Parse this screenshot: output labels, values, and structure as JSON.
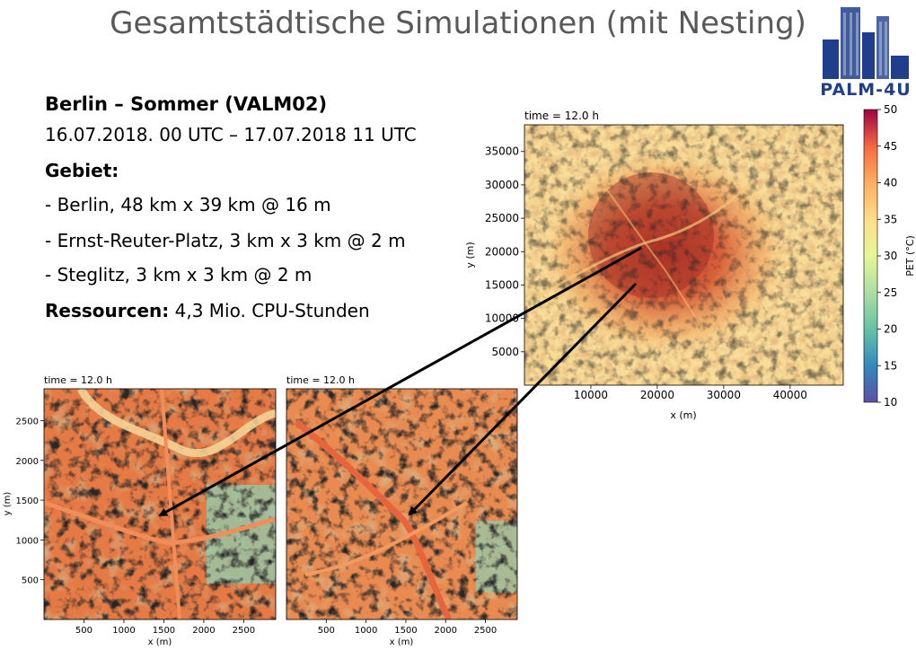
{
  "slide": {
    "title": "Gesamtstädtische Simulationen (mit Nesting)",
    "logo_text": "PALM-4U",
    "heading": "Berlin – Sommer (VALM02)",
    "period": "16.07.2018. 00 UTC – 17.07.2018 11 UTC",
    "gebiet_label": "Gebiet:",
    "domains": [
      "- Berlin, 48 km x 39 km @ 16 m",
      "- Ernst-Reuter-Platz, 3 km x 3 km @ 2 m",
      "- Steglitz, 3 km x 3 km @ 2 m"
    ],
    "ressourcen_label": "Ressourcen:",
    "ressourcen_value": " 4,3 Mio. CPU-Stunden"
  },
  "colors": {
    "title": "#595959",
    "logo_blue": "#1f3f8c",
    "arrow": "#000000"
  },
  "chart_data": [
    {
      "type": "heatmap",
      "name": "berlin",
      "title": "time =  12.0 h",
      "xlabel": "x (m)",
      "ylabel": "y (m)",
      "xticks": [
        "10000",
        "20000",
        "30000",
        "40000"
      ],
      "yticks": [
        "5000",
        "10000",
        "15000",
        "20000",
        "25000",
        "30000",
        "35000"
      ],
      "xlim": [
        0,
        48000
      ],
      "ylim": [
        0,
        39000
      ],
      "colorbar": {
        "label": "PET (°C)",
        "min": 10,
        "max": 50,
        "ticks": [
          "10",
          "15",
          "20",
          "25",
          "30",
          "35",
          "40",
          "45",
          "50"
        ],
        "colormap": "Spectral_r"
      }
    },
    {
      "type": "heatmap",
      "name": "ernst-reuter-platz",
      "title": "time =  12.0 h",
      "xlabel": "x (m)",
      "ylabel": "y (m)",
      "xticks": [
        "500",
        "1000",
        "1500",
        "2000",
        "2500"
      ],
      "yticks": [
        "500",
        "1000",
        "1500",
        "2000",
        "2500"
      ],
      "xlim": [
        0,
        2900
      ],
      "ylim": [
        0,
        2900
      ]
    },
    {
      "type": "heatmap",
      "name": "steglitz",
      "title": "time =  12.0 h",
      "xlabel": "x (m)",
      "xticks": [
        "500",
        "1000",
        "1500",
        "2000",
        "2500"
      ],
      "xlim": [
        0,
        2900
      ],
      "ylim": [
        0,
        2900
      ]
    }
  ]
}
